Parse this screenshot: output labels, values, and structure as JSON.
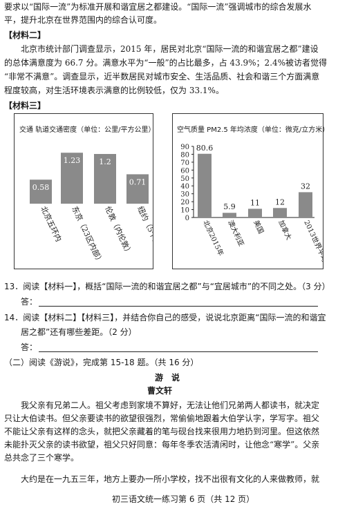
{
  "text": {
    "line1": "要求以“国际一流”为标准开展和谐宜居之都建设。“国际一流”强调城市的综合发展水",
    "line2": "平，提升北京在世界范围内的综合认可度。",
    "material2_heading": "【材料二】",
    "m2_line1": "北京市统计部门调查显示，2015 年，居民对北京“国际一流的和谐宜居之都”建设",
    "m2_line2": "的总体满意度为 66.7 分。满意水平为“一般”的占比最多，占 43.9%；2.4%被访者觉得",
    "m2_line3": "“非常不满意”。调查显示，近半数居民对城市安全、生活品质、社会和谐三个方面满意",
    "m2_line4": "程度较高，对生活环境表示满意的比例较低，仅为 33.1%。",
    "material3_heading": "【材料三】",
    "q13": "13．阅读【材料一】，概括“国际一流的和谐宜居之都”与“宜居城市”的不同之处。（3 分）",
    "answer_label": "答：",
    "q14_line1": "14．阅读【材料二】【材料三】，并结合你自己的感受，说说北京距离“国际一流的和谐宜",
    "q14_line2": "居之都”还有哪些差距。（2 分）",
    "section2": "（二）阅读《游说》，完成第 15-18 题。（共 16 分）",
    "story_title": "游　说",
    "story_author": "曹文轩",
    "s_line1": "我父亲有兄弟二人。祖父考虑到家境不算好，无法让他们兄弟两人都读书，就决定",
    "s_line2": "只让大伯读书。但父亲要读书的欲望很强烈，常偷偷地跟着大伯学认字，学写字。祖父",
    "s_line3": "不能让父亲有这样的念头，就把父亲藏着的笔与砚台找来很用力地扔到河里。但这依然",
    "s_line4": "未能扑灭父亲的读书欲望，祖父只好同意：每年冬季农活清闲时，让他念“寒学”。父亲",
    "s_line5": "总共念了三个寒学。",
    "s_line6": "大约是在一九五三年，地方上要办一所小学校，找不出很有文化的人来做教师，就",
    "footer": "初三语文统一练习第 6 页（共 12 页）"
  },
  "chart_data": [
    {
      "type": "bar",
      "title": "交通  轨道交通密度（单位：公里/平方公里）",
      "categories": [
        "北京五环内",
        "东京（23区内部）",
        "伦敦（内伦敦）",
        "纽约（5个区）"
      ],
      "values": [
        0.58,
        1.23,
        1.2,
        0.71
      ],
      "value_labels": [
        "0.58",
        "1.23",
        "1.2",
        "0.71"
      ],
      "ylim": [
        0,
        1.5
      ],
      "bar_color": "#8a8a8a",
      "label_position": "inside"
    },
    {
      "type": "bar",
      "title": "空气质量 PM2.5 年均浓度（单位：微克/立方米）",
      "categories": [
        "北京2015年",
        "澳大利亚",
        "美国",
        "加拿大",
        "2013世界平均水平"
      ],
      "values": [
        80.6,
        5.9,
        11,
        12,
        32
      ],
      "value_labels": [
        "80.6",
        "5.9",
        "11",
        "12",
        "32"
      ],
      "yticks": [
        "0",
        "10",
        "20",
        "30",
        "40",
        "50",
        "60",
        "70",
        "80",
        "90"
      ],
      "ylim": [
        0,
        90
      ],
      "bar_color": "#8a8a8a",
      "label_position": "above"
    }
  ]
}
